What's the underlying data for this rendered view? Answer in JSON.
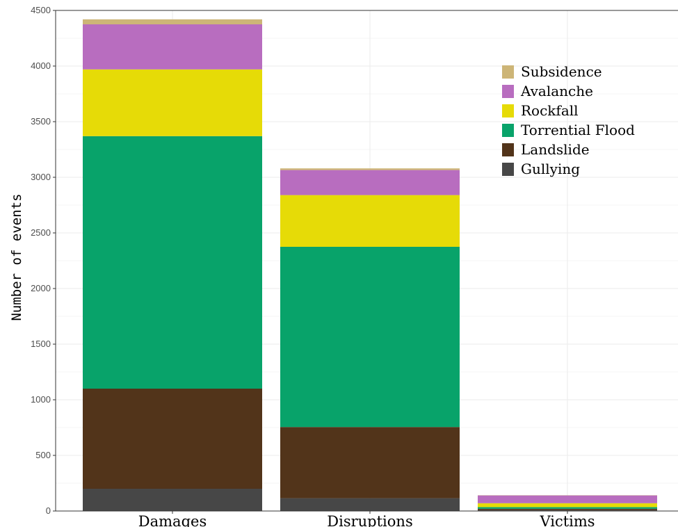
{
  "chart_data": {
    "type": "bar",
    "stacked": true,
    "title": "",
    "xlabel": "",
    "ylabel": "Number of events",
    "categories": [
      "Damages",
      "Disruptions",
      "Victims"
    ],
    "ylim": [
      0,
      4500
    ],
    "yticks": [
      0,
      500,
      1000,
      1500,
      2000,
      2500,
      3000,
      3500,
      4000,
      4500
    ],
    "grid": true,
    "legend_position": "top-right",
    "series": [
      {
        "name": "Gullying",
        "color": "#474747",
        "values": [
          200,
          115,
          8
        ]
      },
      {
        "name": "Landslide",
        "color": "#52341a",
        "values": [
          900,
          640,
          12
        ]
      },
      {
        "name": "Torrential Flood",
        "color": "#08a36a",
        "values": [
          2270,
          1620,
          15
        ]
      },
      {
        "name": "Rockfall",
        "color": "#e6db07",
        "values": [
          600,
          465,
          35
        ]
      },
      {
        "name": "Avalanche",
        "color": "#b86dbf",
        "values": [
          405,
          225,
          70
        ]
      },
      {
        "name": "Subsidence",
        "color": "#cdb577",
        "values": [
          45,
          15,
          2
        ]
      }
    ],
    "legend_order": [
      "Subsidence",
      "Avalanche",
      "Rockfall",
      "Torrential Flood",
      "Landslide",
      "Gullying"
    ]
  }
}
